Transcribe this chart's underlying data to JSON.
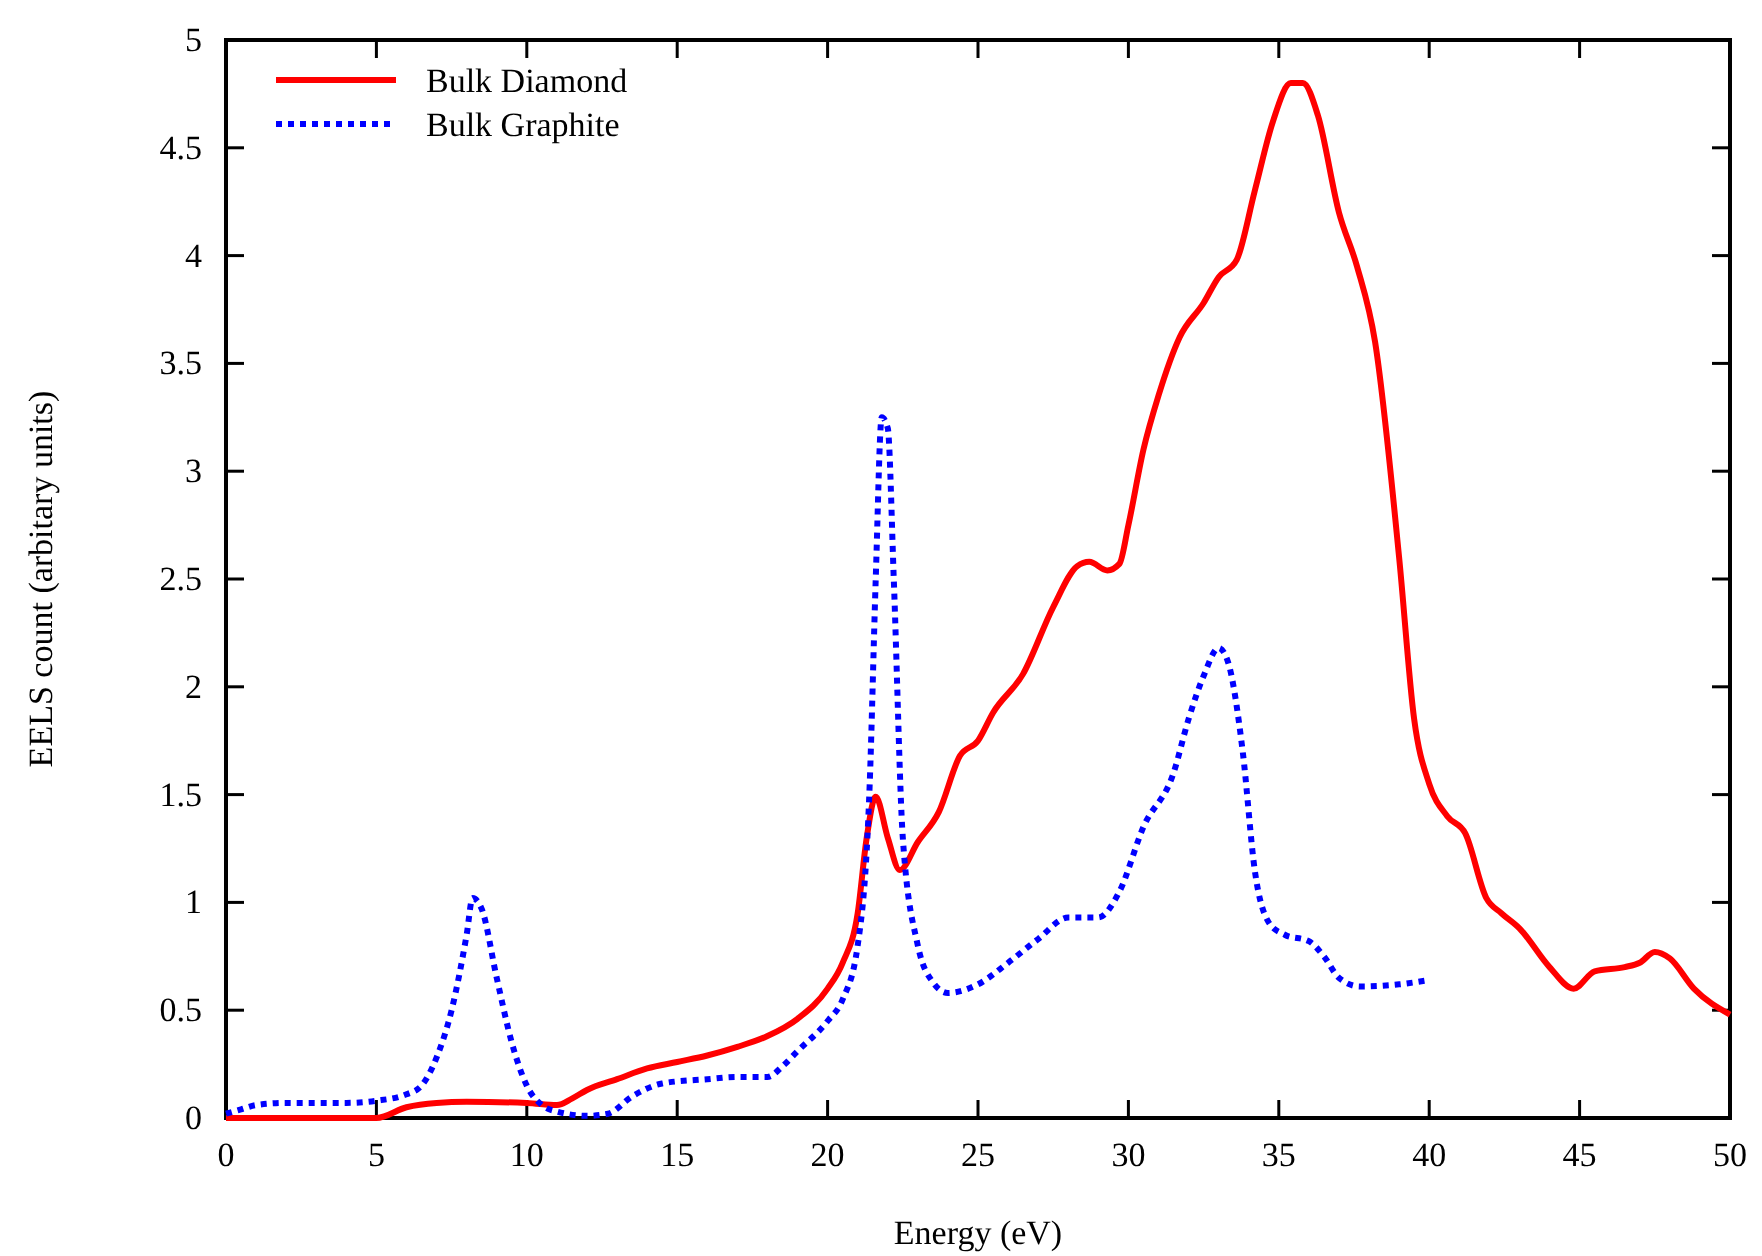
{
  "chart_data": {
    "type": "line",
    "xlabel": "Energy (eV)",
    "ylabel": "EELS count (arbitary units)",
    "xlim": [
      0,
      50
    ],
    "ylim": [
      0,
      5
    ],
    "xticks": [
      0,
      5,
      10,
      15,
      20,
      25,
      30,
      35,
      40,
      45,
      50
    ],
    "yticks": [
      0,
      0.5,
      1,
      1.5,
      2,
      2.5,
      3,
      3.5,
      4,
      4.5,
      5
    ],
    "grid": false,
    "legend": "top left",
    "marker": "none",
    "series": [
      {
        "name": "Bulk Diamond",
        "color": "#ff0000",
        "line_style": "solid",
        "x": [
          0,
          5,
          6,
          7,
          8,
          10,
          11,
          11.5,
          12,
          13,
          14,
          15,
          16,
          17,
          18,
          19,
          20,
          20.5,
          21,
          21.3,
          21.6,
          22,
          22.4,
          23,
          23.7,
          24.4,
          25,
          25.5,
          26.5,
          27.5,
          28.3,
          28.7,
          29.3,
          29.7,
          30,
          30.5,
          31,
          31.7,
          32.5,
          33,
          33.6,
          34.2,
          34.8,
          35.4,
          35.8,
          36.3,
          37,
          37.6,
          38.2,
          39,
          39.5,
          40,
          40.6,
          41.2,
          41.9,
          42.4,
          43,
          44,
          44.8,
          45.5,
          46.5,
          47,
          47.5,
          48,
          48.8,
          50
        ],
        "values": [
          0,
          0,
          0.05,
          0.07,
          0.075,
          0.07,
          0.06,
          0.09,
          0.13,
          0.18,
          0.23,
          0.26,
          0.29,
          0.33,
          0.38,
          0.46,
          0.6,
          0.72,
          0.95,
          1.3,
          1.49,
          1.3,
          1.15,
          1.28,
          1.42,
          1.68,
          1.75,
          1.88,
          2.06,
          2.37,
          2.56,
          2.58,
          2.54,
          2.57,
          2.75,
          3.1,
          3.35,
          3.62,
          3.78,
          3.9,
          3.98,
          4.3,
          4.62,
          4.8,
          4.8,
          4.65,
          4.2,
          3.95,
          3.6,
          2.6,
          1.85,
          1.55,
          1.4,
          1.32,
          1.02,
          0.95,
          0.88,
          0.7,
          0.6,
          0.68,
          0.7,
          0.72,
          0.77,
          0.74,
          0.6,
          0.48
        ]
      },
      {
        "name": "Bulk Graphite",
        "color": "#0000ff",
        "line_style": "dotted",
        "x": [
          0,
          0.5,
          1,
          2,
          4,
          5,
          6,
          6.5,
          7,
          7.5,
          8,
          8.2,
          8.5,
          9,
          9.5,
          10,
          10.5,
          11,
          12,
          12.7,
          13.5,
          14.5,
          16,
          17,
          18,
          18.5,
          19,
          20,
          20.5,
          21,
          21.4,
          21.6,
          21.8,
          22,
          22.2,
          22.5,
          23,
          23.5,
          24,
          25,
          26,
          27,
          28,
          29,
          29.7,
          30.5,
          31.5,
          32,
          32.5,
          33,
          33.3,
          33.8,
          34.2,
          34.7,
          35.2,
          36,
          36.5,
          37,
          37.7,
          39,
          40
        ],
        "values": [
          0.02,
          0.04,
          0.06,
          0.07,
          0.07,
          0.08,
          0.11,
          0.15,
          0.28,
          0.5,
          0.85,
          1.02,
          0.97,
          0.65,
          0.35,
          0.15,
          0.06,
          0.03,
          0.01,
          0.02,
          0.1,
          0.16,
          0.18,
          0.19,
          0.19,
          0.24,
          0.31,
          0.45,
          0.55,
          0.8,
          1.55,
          2.5,
          3.25,
          3.2,
          2.5,
          1.3,
          0.8,
          0.63,
          0.58,
          0.62,
          0.72,
          0.83,
          0.93,
          0.93,
          1.05,
          1.35,
          1.6,
          1.85,
          2.05,
          2.18,
          2.12,
          1.7,
          1.15,
          0.9,
          0.85,
          0.82,
          0.75,
          0.65,
          0.61,
          0.62,
          0.64
        ]
      }
    ]
  }
}
